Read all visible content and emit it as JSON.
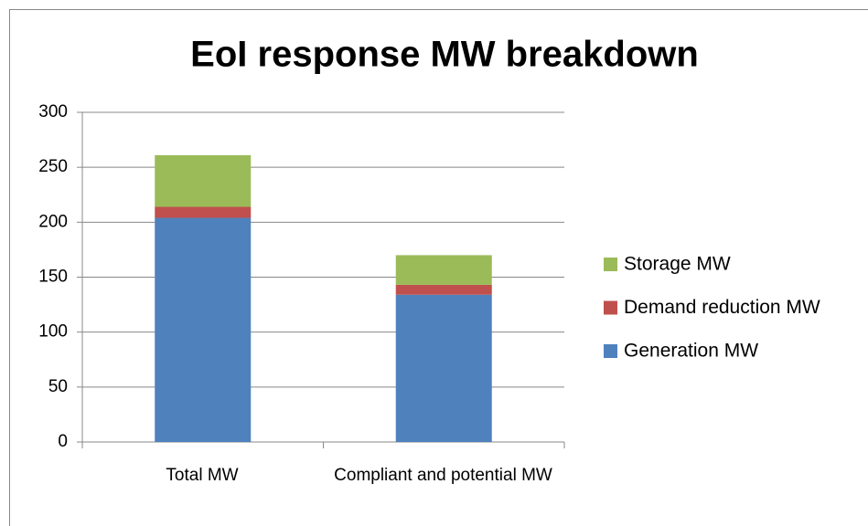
{
  "chart_data": {
    "type": "stacked_bar",
    "title": "EoI response MW breakdown",
    "categories": [
      "Total MW",
      "Compliant and potential MW"
    ],
    "series": [
      {
        "name": "Generation MW",
        "color": "#4f81bd",
        "values": [
          204,
          134
        ]
      },
      {
        "name": "Demand reduction MW",
        "color": "#c0504d",
        "values": [
          10,
          9
        ]
      },
      {
        "name": "Storage MW",
        "color": "#9bbb59",
        "values": [
          47,
          27
        ]
      }
    ],
    "ylim": [
      0,
      300
    ],
    "yticks": [
      0,
      50,
      100,
      150,
      200,
      250,
      300
    ],
    "grid": true,
    "legend": "right"
  }
}
